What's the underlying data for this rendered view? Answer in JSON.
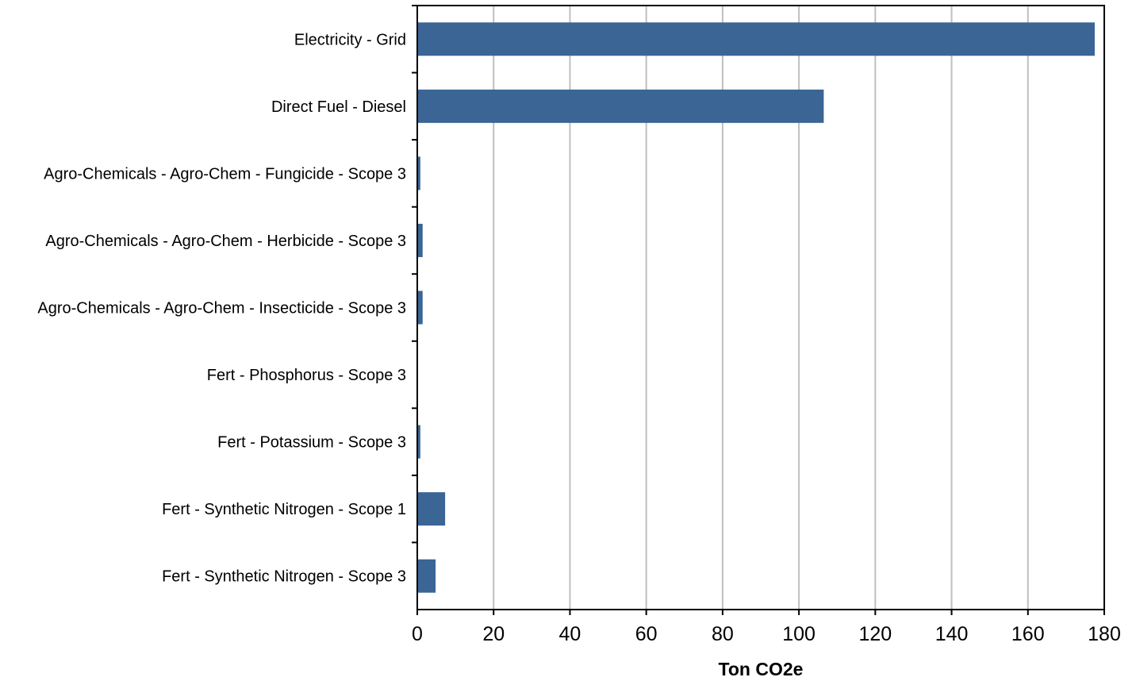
{
  "chart_data": {
    "type": "bar",
    "orientation": "horizontal",
    "categories": [
      "Electricity - Grid",
      "Direct Fuel - Diesel",
      "Agro-Chemicals - Agro-Chem - Fungicide - Scope 3",
      "Agro-Chemicals - Agro-Chem - Herbicide - Scope 3",
      "Agro-Chemicals - Agro-Chem - Insecticide - Scope 3",
      "Fert - Phosphorus - Scope 3",
      "Fert - Potassium - Scope 3",
      "Fert - Synthetic Nitrogen - Scope 1",
      "Fert - Synthetic Nitrogen - Scope 3"
    ],
    "values": [
      177.5,
      106.5,
      0.8,
      1.4,
      1.4,
      0.0,
      0.8,
      7.3,
      4.8
    ],
    "title": "",
    "xlabel": "Ton CO2e",
    "ylabel": "",
    "xlim": [
      0,
      180
    ],
    "xticks": [
      "0",
      "20",
      "40",
      "60",
      "80",
      "100",
      "120",
      "140",
      "160",
      "180"
    ],
    "grid": "vertical",
    "legend": "none",
    "bar_color": "#3a6595",
    "grid_color": "#bfbfbf"
  }
}
